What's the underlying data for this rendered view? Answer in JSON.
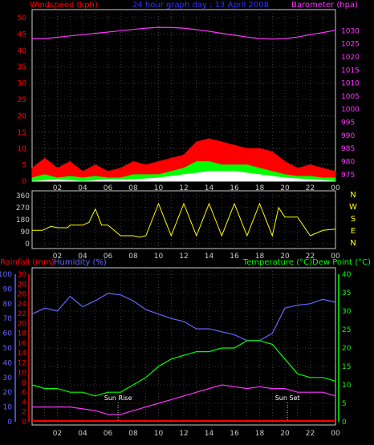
{
  "header": {
    "left_title": "Windspeed (kph)",
    "center_title": "24 hour graph day : 13 April 2008",
    "right_title": "Barometer (hpa)"
  },
  "x_ticks": [
    "02",
    "04",
    "06",
    "08",
    "10",
    "12",
    "14",
    "16",
    "18",
    "20",
    "22",
    "00"
  ],
  "wind_panel": {
    "left_ticks": [
      0,
      5,
      10,
      15,
      20,
      25,
      30,
      35,
      40,
      45,
      50
    ],
    "right_ticks": [
      975,
      980,
      985,
      990,
      995,
      1000,
      1005,
      1010,
      1015,
      1020,
      1025,
      1030
    ],
    "wind_ylim": [
      0,
      50
    ],
    "baro_ylim": [
      972.5,
      1035
    ],
    "barometer": {
      "name": "Barometer",
      "color": "#ff33ff",
      "x": [
        0,
        1,
        2,
        3,
        4,
        5,
        6,
        7,
        8,
        9,
        10,
        11,
        12,
        13,
        14,
        15,
        16,
        17,
        18,
        19,
        20,
        21,
        22,
        23,
        24
      ],
      "y": [
        1027,
        1027,
        1027.5,
        1028,
        1028.5,
        1029,
        1029.5,
        1030,
        1030.5,
        1031,
        1031.3,
        1031.2,
        1031,
        1030.4,
        1029.8,
        1029,
        1028.3,
        1027.6,
        1027,
        1026.8,
        1027,
        1027.6,
        1028.5,
        1029.3,
        1030.2
      ]
    },
    "wind_gust": {
      "name": "Wind gust",
      "color": "#ff0000",
      "x": [
        0,
        1,
        2,
        3,
        4,
        5,
        6,
        7,
        8,
        9,
        10,
        11,
        12,
        13,
        14,
        15,
        16,
        17,
        18,
        19,
        20,
        21,
        22,
        23,
        24
      ],
      "y": [
        4,
        7,
        4,
        6,
        3,
        5,
        3,
        4,
        6,
        5,
        6,
        7,
        8,
        12,
        13,
        12,
        11,
        10,
        10,
        9,
        6,
        4,
        5,
        4,
        3
      ]
    },
    "wind_avg": {
      "name": "Wind average",
      "color": "#00ff00",
      "x": [
        0,
        1,
        2,
        3,
        4,
        5,
        6,
        7,
        8,
        9,
        10,
        11,
        12,
        13,
        14,
        15,
        16,
        17,
        18,
        19,
        20,
        21,
        22,
        23,
        24
      ],
      "y": [
        1,
        2,
        1,
        1.5,
        1,
        1.5,
        1,
        1,
        2,
        2,
        2,
        3,
        4,
        6,
        6,
        5,
        5,
        5,
        4,
        3,
        2,
        1.5,
        1.5,
        1,
        1
      ]
    },
    "wind_low": {
      "name": "Wind low",
      "color": "#ffffff",
      "x": [
        0,
        2,
        4,
        6,
        8,
        10,
        12,
        14,
        16,
        18,
        20,
        22,
        24
      ],
      "y": [
        0,
        0.5,
        0,
        0.5,
        0.5,
        1,
        2,
        3,
        3,
        2,
        1,
        0.5,
        0
      ]
    }
  },
  "direction_panel": {
    "left_ticks": [
      0,
      90,
      180,
      270,
      360
    ],
    "right_labels": [
      "N",
      "W",
      "S",
      "E",
      "N"
    ],
    "ylim": [
      0,
      360
    ],
    "direction": {
      "name": "Wind direction",
      "color": "#ffff00",
      "x": [
        0,
        0.8,
        1.5,
        2,
        2.8,
        3,
        4,
        4.5,
        5,
        5.5,
        6,
        7,
        8,
        8.5,
        9,
        10,
        11,
        12,
        13,
        14,
        15,
        16,
        17,
        18,
        19,
        19.5,
        20,
        21,
        22,
        23,
        24
      ],
      "y": [
        100,
        100,
        130,
        120,
        120,
        140,
        140,
        160,
        260,
        140,
        140,
        60,
        60,
        50,
        60,
        300,
        60,
        300,
        60,
        300,
        60,
        300,
        60,
        300,
        60,
        270,
        200,
        200,
        60,
        100,
        110
      ]
    }
  },
  "climate_panel": {
    "left_label_rain": "Rainfall (mm)",
    "left_label_hum": "Humidity (%)",
    "right_label": "Temperature (°C)Dew Point (°C)",
    "rain_ticks": [
      0,
      2,
      4,
      6,
      8,
      10,
      12,
      14,
      16,
      18,
      20,
      22,
      24,
      26,
      28,
      30
    ],
    "hum_ticks": [
      0,
      10,
      20,
      30,
      40,
      50,
      60,
      70,
      80,
      90,
      100
    ],
    "temp_ticks": [
      0,
      5,
      10,
      15,
      20,
      25,
      30,
      35,
      40
    ],
    "temp_ylim": [
      0,
      40
    ],
    "hum_ylim": [
      0,
      100
    ],
    "sunrise_label": "Sun Rise",
    "sunset_label": "Sun Set",
    "sunrise_time": 6.8,
    "sunset_time": 20.2,
    "humidity": {
      "name": "Humidity",
      "color": "#6666ff",
      "x": [
        0,
        1,
        2,
        3,
        4,
        5,
        6,
        7,
        8,
        9,
        10,
        11,
        12,
        13,
        14,
        15,
        16,
        17,
        18,
        19,
        20,
        21,
        22,
        23,
        24
      ],
      "y": [
        73,
        77,
        75,
        85,
        78,
        82,
        87,
        86,
        82,
        76,
        73,
        70,
        68,
        63,
        63,
        61,
        59,
        55,
        55,
        60,
        77,
        79,
        80,
        83,
        81
      ]
    },
    "temperature": {
      "name": "Temperature",
      "color": "#00ff00",
      "x": [
        0,
        1,
        2,
        3,
        4,
        5,
        6,
        7,
        8,
        9,
        10,
        11,
        12,
        13,
        14,
        15,
        16,
        17,
        18,
        19,
        20,
        21,
        22,
        23,
        24
      ],
      "y": [
        10,
        9,
        9,
        8,
        8,
        7,
        8,
        8,
        10,
        12,
        15,
        17,
        18,
        19,
        19,
        20,
        20,
        22,
        22,
        21,
        17,
        13,
        12,
        12,
        11
      ]
    },
    "dewpoint": {
      "name": "Dew Point",
      "color": "#ff33ff",
      "x": [
        0,
        1,
        2,
        3,
        4,
        5,
        6,
        7,
        8,
        9,
        10,
        11,
        12,
        13,
        14,
        15,
        16,
        17,
        18,
        19,
        20,
        21,
        22,
        23,
        24
      ],
      "y": [
        4,
        4,
        4,
        4,
        3.5,
        3,
        2,
        2,
        3,
        4,
        5,
        6,
        7,
        8,
        9,
        10,
        9.5,
        9,
        9.5,
        9,
        9,
        8,
        8,
        8,
        7
      ]
    },
    "rainfall": {
      "name": "Rainfall",
      "color": "#ff0000",
      "value": 0
    }
  }
}
